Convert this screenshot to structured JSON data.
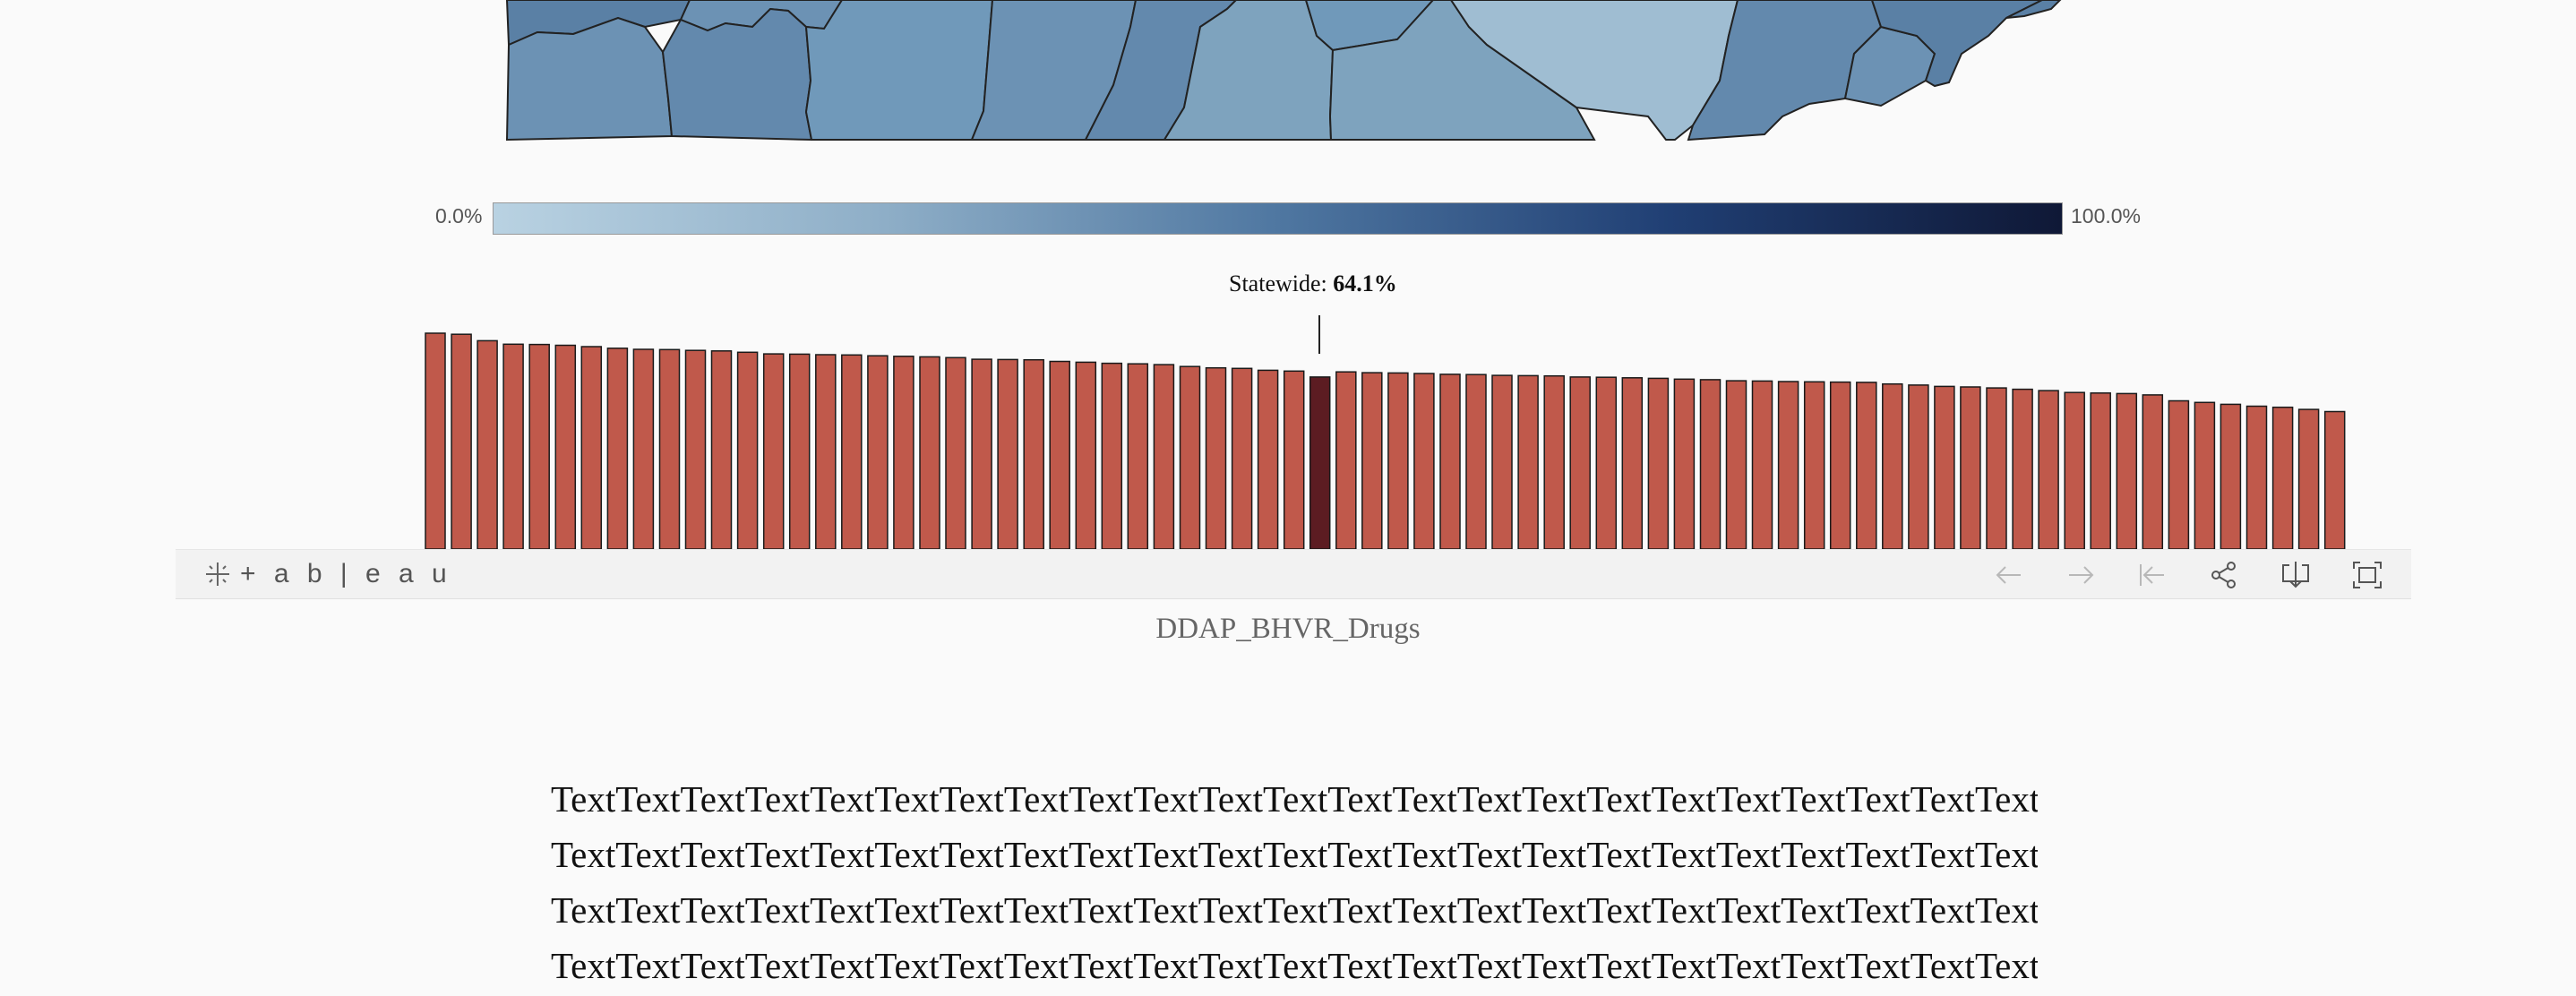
{
  "legend": {
    "min_label": "0.0%",
    "max_label": "100.0%"
  },
  "statewide": {
    "prefix": "Statewide: ",
    "value": "64.1%"
  },
  "toolbar": {
    "brand": "+ a b | e a u"
  },
  "caption": "DDAP_BHVR_Drugs",
  "body_lines": [
    "TextTextTextTextTextTextTextTextTextTextTextTextTextTextTextTextTextTextTextTextTextTextText",
    "TextTextTextTextTextTextTextTextTextTextTextTextTextTextTextTextTextTextTextTextTextTextText",
    "TextTextTextTextTextTextTextTextTextTextTextTextTextTextTextTextTextTextTextTextTextTextText",
    "TextTextTextTextTextTextTextTextTextTextTextTextTextTextTextTextTextTextTextTextTextTextText"
  ],
  "colors": {
    "bar": "#c0594b",
    "bar_highlight": "#5c1c22",
    "map_fills": [
      "#5a80a5",
      "#6c92b4",
      "#7099ba",
      "#6389ad",
      "#7ea3be",
      "#9fbdd2"
    ]
  },
  "chart_data": {
    "type": "bar",
    "title": "",
    "xlabel": "",
    "ylabel": "",
    "highlight_index": 34,
    "values": [
      80.4,
      80.0,
      77.6,
      76.3,
      76.2,
      75.9,
      75.4,
      74.8,
      74.4,
      74.3,
      74.0,
      73.8,
      73.3,
      72.7,
      72.6,
      72.4,
      72.3,
      72.0,
      71.8,
      71.6,
      71.3,
      70.7,
      70.6,
      70.5,
      69.9,
      69.6,
      69.2,
      69.0,
      68.7,
      68.0,
      67.5,
      67.3,
      66.6,
      66.3,
      64.1,
      66.0,
      65.7,
      65.6,
      65.4,
      65.1,
      65.0,
      64.7,
      64.6,
      64.5,
      64.1,
      64.0,
      63.8,
      63.6,
      63.3,
      63.1,
      62.7,
      62.6,
      62.4,
      62.3,
      62.2,
      62.1,
      61.5,
      61.1,
      60.6,
      60.4,
      60.0,
      59.5,
      59.0,
      58.3,
      58.1,
      57.9,
      57.4,
      55.2,
      54.6,
      53.9,
      53.2,
      52.8,
      52.0,
      51.2
    ],
    "ylim": [
      0,
      100
    ]
  }
}
